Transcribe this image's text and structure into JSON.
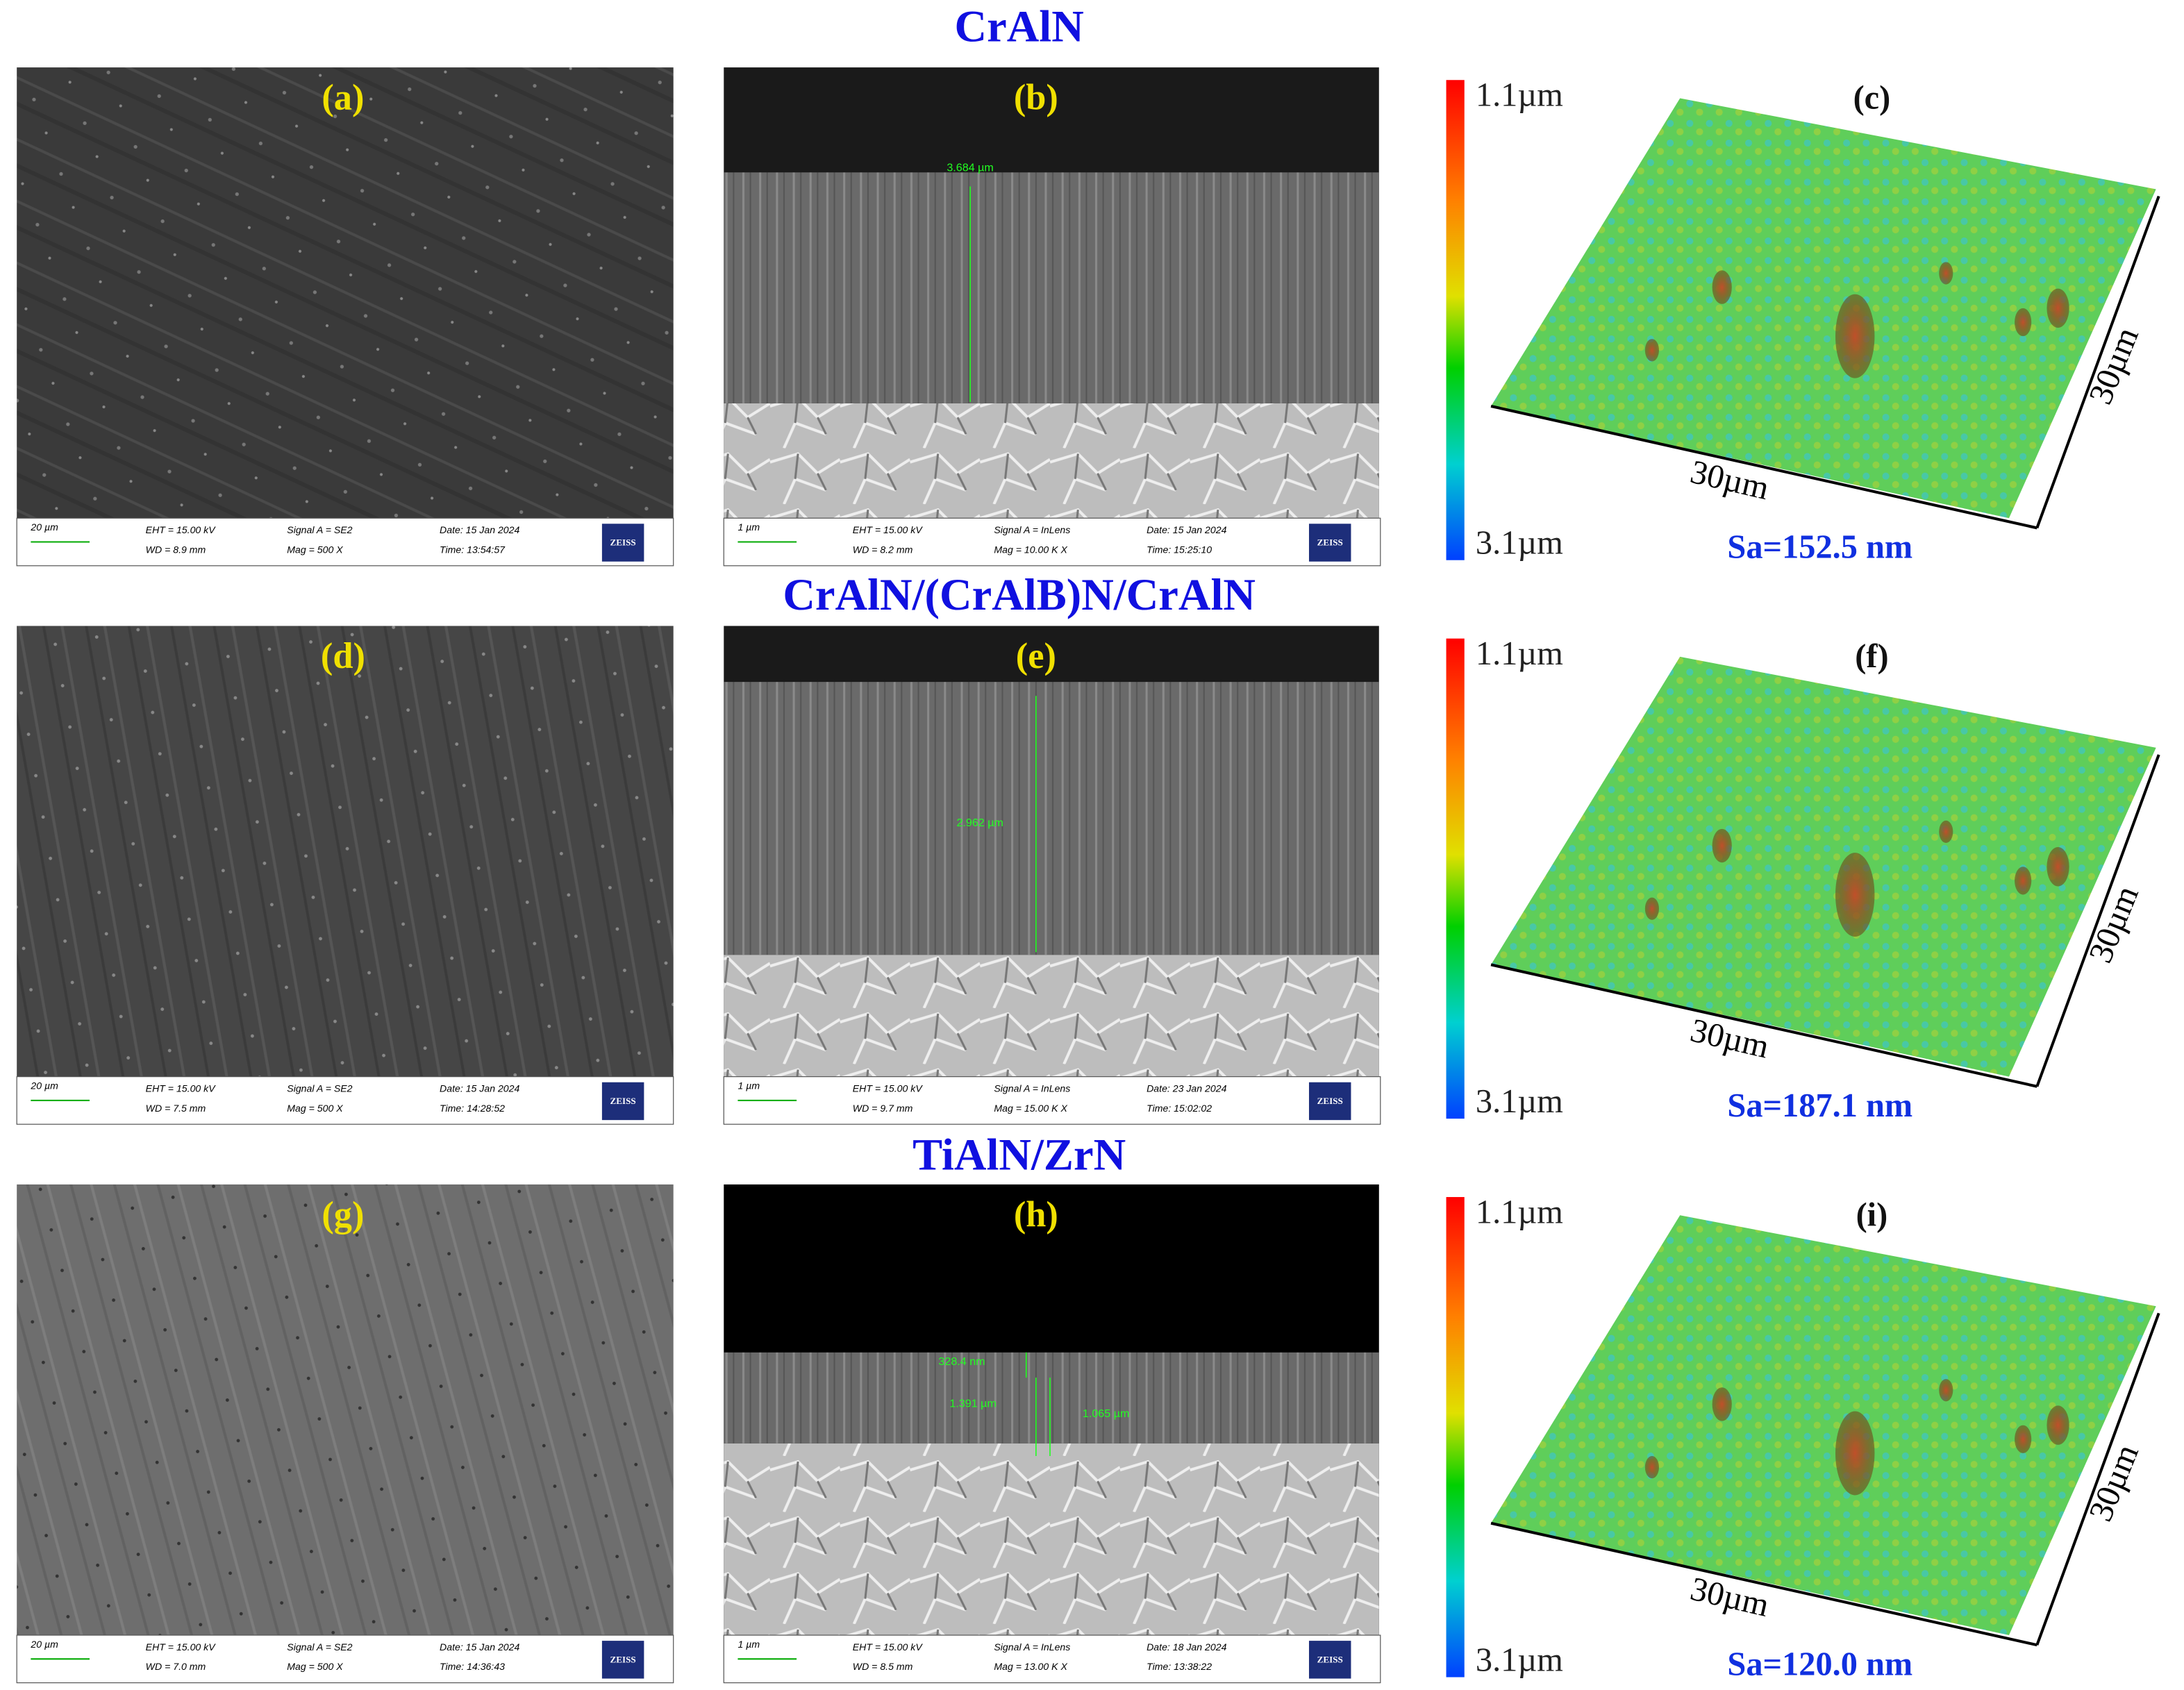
{
  "rows": [
    {
      "title": "CrAlN",
      "surface": {
        "label": "(a)",
        "scale": "20 µm",
        "eht": "EHT = 15.00 kV",
        "wd": "WD = 8.9 mm",
        "signal": "Signal A = SE2",
        "mag": "Mag =   500 X",
        "date": "Date: 15 Jan 2024",
        "time": "Time: 13:54:57",
        "logo": "ZEISS"
      },
      "cross": {
        "label": "(b)",
        "scale": "1 µm",
        "eht": "EHT = 15.00 kV",
        "wd": "WD = 8.2 mm",
        "signal": "Signal A = InLens",
        "mag": "Mag =  10.00 K X",
        "date": "Date: 15 Jan 2024",
        "time": "Time: 15:25:10",
        "logo": "ZEISS",
        "measurements": [
          "3.684 µm"
        ]
      },
      "topo": {
        "label": "(c)",
        "max": "1.1µm",
        "min": "3.1µm",
        "x_axis": "30µm",
        "y_axis": "30µm",
        "sa": "Sa=152.5 nm"
      }
    },
    {
      "title": "CrAlN/(CrAlB)N/CrAlN",
      "surface": {
        "label": "(d)",
        "scale": "20 µm",
        "eht": "EHT = 15.00 kV",
        "wd": "WD = 7.5 mm",
        "signal": "Signal A = SE2",
        "mag": "Mag =   500 X",
        "date": "Date: 15 Jan 2024",
        "time": "Time: 14:28:52",
        "logo": "ZEISS"
      },
      "cross": {
        "label": "(e)",
        "scale": "1 µm",
        "eht": "EHT = 15.00 kV",
        "wd": "WD = 9.7 mm",
        "signal": "Signal A = InLens",
        "mag": "Mag =  15.00 K X",
        "date": "Date: 23 Jan 2024",
        "time": "Time: 15:02:02",
        "logo": "ZEISS",
        "measurements": [
          "2.962 µm"
        ]
      },
      "topo": {
        "label": "(f)",
        "max": "1.1µm",
        "min": "3.1µm",
        "x_axis": "30µm",
        "y_axis": "30µm",
        "sa": "Sa=187.1 nm"
      }
    },
    {
      "title": "TiAlN/ZrN",
      "surface": {
        "label": "(g)",
        "scale": "20 µm",
        "eht": "EHT = 15.00 kV",
        "wd": "WD = 7.0 mm",
        "signal": "Signal A = SE2",
        "mag": "Mag =   500 X",
        "date": "Date: 15 Jan 2024",
        "time": "Time: 14:36:43",
        "logo": "ZEISS"
      },
      "cross": {
        "label": "(h)",
        "scale": "1 µm",
        "eht": "EHT = 15.00 kV",
        "wd": "WD = 8.5 mm",
        "signal": "Signal A = InLens",
        "mag": "Mag =  13.00 K X",
        "date": "Date: 18 Jan 2024",
        "time": "Time: 13:38:22",
        "logo": "ZEISS",
        "measurements": [
          "328.4 nm",
          "1.391 µm",
          "1.065 µm"
        ]
      },
      "topo": {
        "label": "(i)",
        "max": "1.1µm",
        "min": "3.1µm",
        "x_axis": "30µm",
        "y_axis": "30µm",
        "sa": "Sa=120.0 nm"
      }
    }
  ]
}
